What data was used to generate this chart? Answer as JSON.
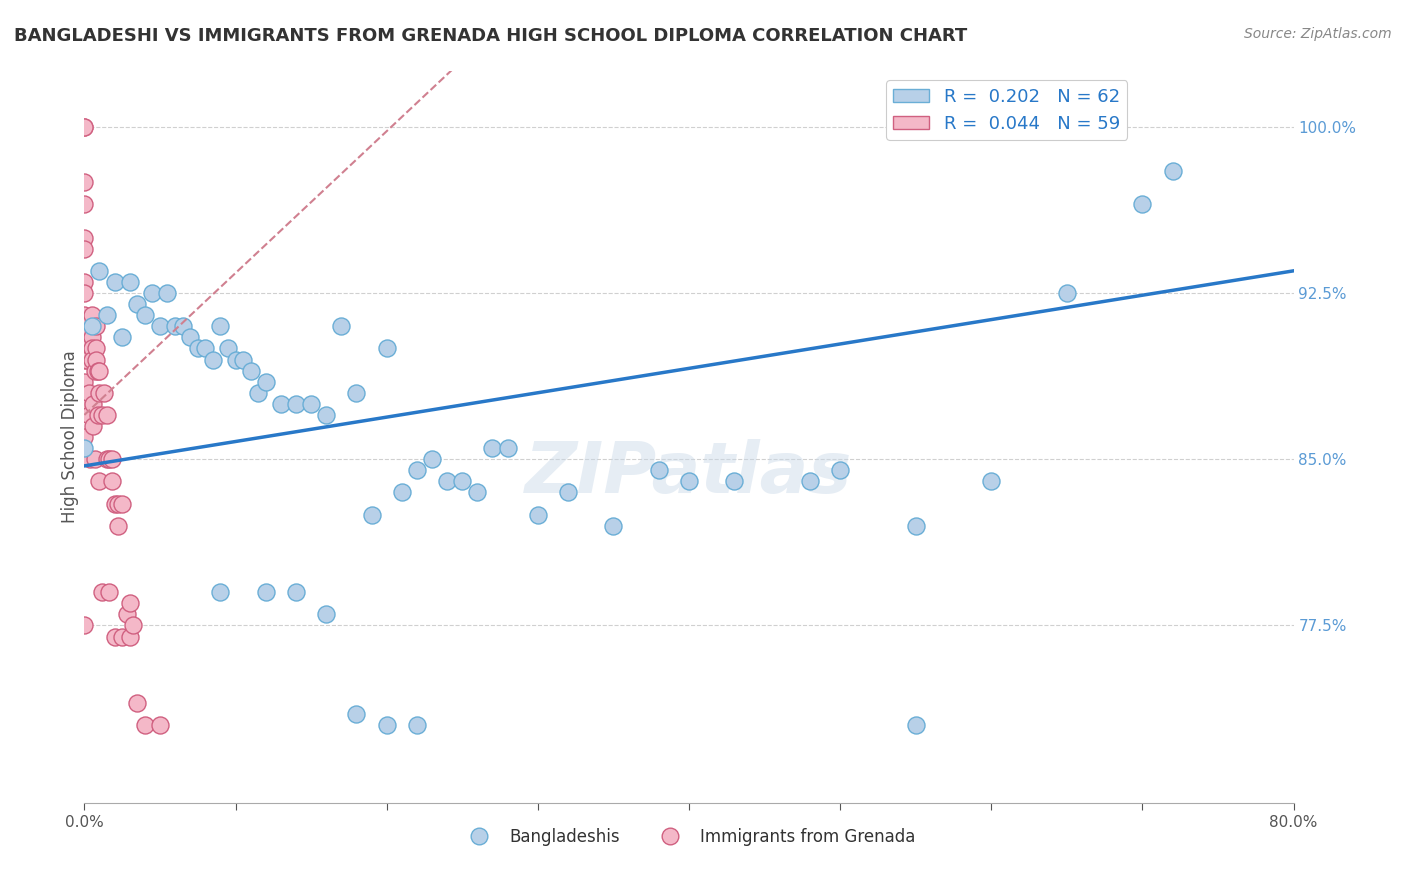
{
  "title": "BANGLADESHI VS IMMIGRANTS FROM GRENADA HIGH SCHOOL DIPLOMA CORRELATION CHART",
  "source": "Source: ZipAtlas.com",
  "ylabel": "High School Diploma",
  "right_ytick_labels": [
    "100.0%",
    "92.5%",
    "85.0%",
    "77.5%"
  ],
  "right_ytick_vals": [
    1.0,
    0.925,
    0.85,
    0.775
  ],
  "xmin": 0.0,
  "xmax": 0.8,
  "ymin": 0.695,
  "ymax": 1.025,
  "blue_color": "#b8d0e8",
  "blue_edge_color": "#6aaed6",
  "pink_color": "#f4b8c8",
  "pink_edge_color": "#d06080",
  "blue_line_color": "#2878c8",
  "pink_line_color": "#d08090",
  "legend_blue_label": "R =  0.202   N = 62",
  "legend_pink_label": "R =  0.044   N = 59",
  "legend_blue_color": "#b8d0e8",
  "legend_pink_color": "#f4b8c8",
  "watermark": "ZIPatlas",
  "series1_label": "Bangladeshis",
  "series2_label": "Immigrants from Grenada",
  "blue_x": [
    0.0,
    0.005,
    0.01,
    0.015,
    0.02,
    0.025,
    0.03,
    0.035,
    0.04,
    0.045,
    0.05,
    0.055,
    0.06,
    0.065,
    0.07,
    0.075,
    0.08,
    0.085,
    0.09,
    0.095,
    0.1,
    0.105,
    0.11,
    0.115,
    0.12,
    0.13,
    0.14,
    0.15,
    0.16,
    0.17,
    0.18,
    0.19,
    0.2,
    0.21,
    0.22,
    0.23,
    0.24,
    0.25,
    0.26,
    0.27,
    0.28,
    0.3,
    0.32,
    0.35,
    0.38,
    0.4,
    0.43,
    0.48,
    0.5,
    0.55,
    0.6,
    0.65,
    0.7,
    0.72,
    0.09,
    0.12,
    0.14,
    0.16,
    0.18,
    0.2,
    0.22,
    0.55
  ],
  "blue_y": [
    0.855,
    0.91,
    0.935,
    0.915,
    0.93,
    0.905,
    0.93,
    0.92,
    0.915,
    0.925,
    0.91,
    0.925,
    0.91,
    0.91,
    0.905,
    0.9,
    0.9,
    0.895,
    0.91,
    0.9,
    0.895,
    0.895,
    0.89,
    0.88,
    0.885,
    0.875,
    0.875,
    0.875,
    0.87,
    0.91,
    0.88,
    0.825,
    0.9,
    0.835,
    0.845,
    0.85,
    0.84,
    0.84,
    0.835,
    0.855,
    0.855,
    0.825,
    0.835,
    0.82,
    0.845,
    0.84,
    0.84,
    0.84,
    0.845,
    0.82,
    0.84,
    0.925,
    0.965,
    0.98,
    0.79,
    0.79,
    0.79,
    0.78,
    0.735,
    0.73,
    0.73,
    0.73
  ],
  "pink_x": [
    0.0,
    0.0,
    0.0,
    0.0,
    0.0,
    0.0,
    0.0,
    0.0,
    0.0,
    0.0,
    0.0,
    0.0,
    0.0,
    0.0,
    0.0,
    0.0,
    0.002,
    0.002,
    0.003,
    0.003,
    0.004,
    0.005,
    0.005,
    0.005,
    0.005,
    0.006,
    0.006,
    0.007,
    0.007,
    0.008,
    0.008,
    0.008,
    0.009,
    0.009,
    0.01,
    0.01,
    0.01,
    0.012,
    0.012,
    0.013,
    0.015,
    0.015,
    0.016,
    0.016,
    0.018,
    0.018,
    0.02,
    0.02,
    0.022,
    0.022,
    0.025,
    0.025,
    0.028,
    0.03,
    0.03,
    0.032,
    0.035,
    0.04,
    0.05
  ],
  "pink_y": [
    1.0,
    1.0,
    0.975,
    0.965,
    0.95,
    0.945,
    0.93,
    0.925,
    0.915,
    0.905,
    0.9,
    0.895,
    0.885,
    0.875,
    0.86,
    0.775,
    0.9,
    0.895,
    0.88,
    0.87,
    0.85,
    0.915,
    0.905,
    0.9,
    0.895,
    0.875,
    0.865,
    0.89,
    0.85,
    0.91,
    0.9,
    0.895,
    0.89,
    0.87,
    0.89,
    0.88,
    0.84,
    0.87,
    0.79,
    0.88,
    0.85,
    0.87,
    0.85,
    0.79,
    0.85,
    0.84,
    0.83,
    0.77,
    0.83,
    0.82,
    0.83,
    0.77,
    0.78,
    0.785,
    0.77,
    0.775,
    0.74,
    0.73,
    0.73
  ]
}
